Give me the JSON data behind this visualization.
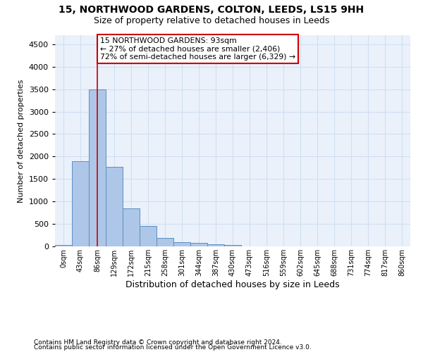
{
  "title1": "15, NORTHWOOD GARDENS, COLTON, LEEDS, LS15 9HH",
  "title2": "Size of property relative to detached houses in Leeds",
  "xlabel": "Distribution of detached houses by size in Leeds",
  "ylabel": "Number of detached properties",
  "categories": [
    "0sqm",
    "43sqm",
    "86sqm",
    "129sqm",
    "172sqm",
    "215sqm",
    "258sqm",
    "301sqm",
    "344sqm",
    "387sqm",
    "430sqm",
    "473sqm",
    "516sqm",
    "559sqm",
    "602sqm",
    "645sqm",
    "688sqm",
    "731sqm",
    "774sqm",
    "817sqm",
    "860sqm"
  ],
  "values": [
    30,
    1900,
    3500,
    1775,
    840,
    460,
    185,
    100,
    75,
    45,
    30,
    0,
    0,
    0,
    0,
    0,
    0,
    0,
    0,
    0,
    0
  ],
  "bar_color": "#aec6e8",
  "bar_edge_color": "#5a8fc2",
  "grid_color": "#d0dff0",
  "vline_x": 2,
  "vline_color": "#cc0000",
  "annotation_line1": "15 NORTHWOOD GARDENS: 93sqm",
  "annotation_line2": "← 27% of detached houses are smaller (2,406)",
  "annotation_line3": "72% of semi-detached houses are larger (6,329) →",
  "annotation_box_color": "#ffffff",
  "annotation_box_edge": "#cc0000",
  "ylim": [
    0,
    4700
  ],
  "yticks": [
    0,
    500,
    1000,
    1500,
    2000,
    2500,
    3000,
    3500,
    4000,
    4500
  ],
  "footer1": "Contains HM Land Registry data © Crown copyright and database right 2024.",
  "footer2": "Contains public sector information licensed under the Open Government Licence v3.0.",
  "bg_color": "#ffffff",
  "plot_bg_color": "#eaf1fb"
}
